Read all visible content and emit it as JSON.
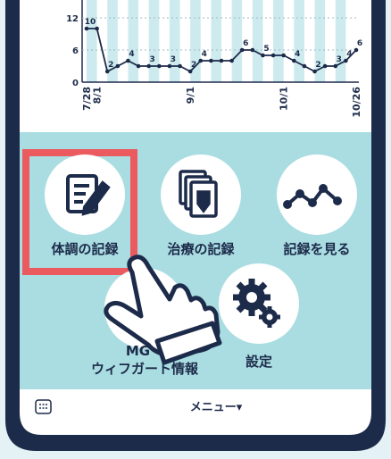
{
  "chart_data": {
    "type": "line",
    "categories": [
      "7/28",
      "8/1",
      null,
      null,
      null,
      null,
      null,
      null,
      null,
      null,
      "9/1",
      null,
      null,
      null,
      null,
      null,
      null,
      null,
      null,
      "10/1",
      null,
      null,
      null,
      null,
      null,
      null,
      "10/26"
    ],
    "values": [
      10,
      10,
      2,
      3,
      4,
      3,
      3,
      3,
      3,
      3,
      2,
      4,
      4,
      4,
      4,
      6,
      6,
      5,
      5,
      5,
      4,
      3,
      2,
      3,
      3,
      4,
      6
    ],
    "value_labels": [
      "10",
      null,
      "2",
      null,
      "4",
      null,
      "3",
      null,
      "3",
      null,
      "2",
      "4",
      null,
      null,
      null,
      "6",
      null,
      "5",
      null,
      null,
      "4",
      null,
      "2",
      null,
      "3",
      "4",
      "6"
    ],
    "color": "#1d2b4a",
    "ylim": [
      0,
      12
    ],
    "yticks": [
      0,
      6,
      12
    ],
    "grid": true
  },
  "menu": {
    "items": [
      "体調の記録",
      "治療の記録",
      "記録を見る",
      "MG・",
      "ウィフガート情報",
      "設定"
    ],
    "bottom_bar": "メニュー▾"
  }
}
